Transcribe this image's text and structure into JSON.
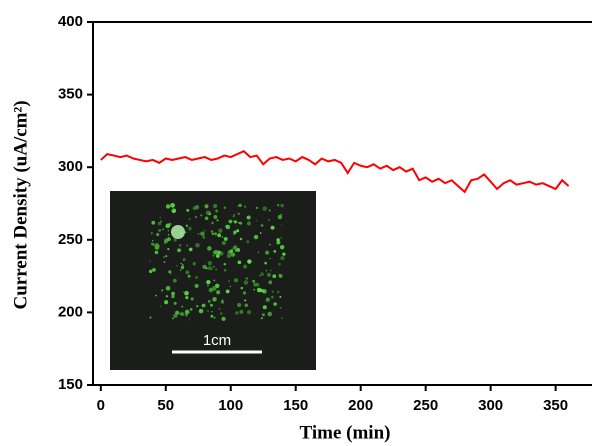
{
  "chart_data": {
    "type": "line",
    "x_label": "Time (min)",
    "y_label": "Current Density (uA/cm²)",
    "inset_label": "1cm",
    "color": "#ff0000",
    "x": [
      0,
      5,
      10,
      15,
      20,
      25,
      30,
      35,
      40,
      45,
      50,
      55,
      60,
      65,
      70,
      75,
      80,
      85,
      90,
      95,
      100,
      105,
      110,
      115,
      120,
      125,
      130,
      135,
      140,
      145,
      150,
      155,
      160,
      165,
      170,
      175,
      180,
      185,
      190,
      195,
      200,
      205,
      210,
      215,
      220,
      225,
      230,
      235,
      240,
      245,
      250,
      255,
      260,
      265,
      270,
      275,
      280,
      285,
      290,
      295,
      300,
      305,
      310,
      315,
      320,
      325,
      330,
      335,
      340,
      345,
      350,
      355,
      360
    ],
    "values": [
      305,
      309,
      308,
      307,
      308,
      306,
      305,
      304,
      305,
      303,
      306,
      305,
      306,
      307,
      305,
      306,
      307,
      305,
      306,
      308,
      307,
      309,
      311,
      307,
      308,
      302,
      306,
      307,
      305,
      306,
      304,
      307,
      305,
      302,
      306,
      304,
      305,
      303,
      296,
      303,
      301,
      300,
      302,
      299,
      301,
      298,
      300,
      297,
      299,
      291,
      293,
      290,
      292,
      289,
      291,
      287,
      283,
      291,
      292,
      295,
      290,
      285,
      289,
      291,
      288,
      289,
      290,
      288,
      289,
      287,
      285,
      291,
      287
    ],
    "xlim": [
      -6,
      378
    ],
    "ylim": [
      150,
      400
    ],
    "xticks": [
      0,
      50,
      100,
      150,
      200,
      250,
      300,
      350
    ],
    "yticks": [
      150,
      200,
      250,
      300,
      350,
      400
    ]
  }
}
